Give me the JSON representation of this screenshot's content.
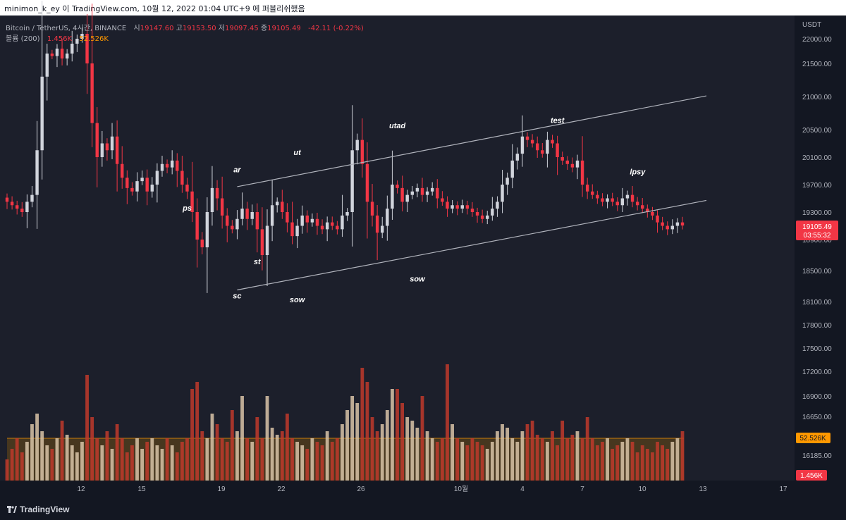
{
  "header": {
    "attribution": "minimon_k_ey 이 TradingView.com, 10월 12, 2022 01:04 UTC+9 에 퍼블리쉬했음"
  },
  "legend": {
    "symbol": "Bitcoin / TetherUS, 4시간, BINANCE",
    "open_label": "시",
    "open": "19147.60",
    "high_label": "고",
    "high": "19153.50",
    "low_label": "저",
    "low": "19097.45",
    "close_label": "종",
    "close": "19105.49",
    "change": "-42.11 (-0.22%)",
    "volume_label": "볼륨 (200)",
    "volume_value": "1.456K",
    "volume_ma": "52.526K"
  },
  "axis": {
    "currency": "USDT"
  },
  "price_tag": {
    "value": "19105.49",
    "countdown": "03:55:32"
  },
  "volume_tags": {
    "ma": "52.526K",
    "current": "1.456K"
  },
  "footer": {
    "brand": "TradingView"
  },
  "colors": {
    "background": "#1c1f2b",
    "up": "#d1d4dc",
    "down": "#f23645",
    "volume_ma": "#ff9800",
    "channel": "#b2b5be"
  },
  "chart_data": {
    "type": "candlestick",
    "title": "Bitcoin / TetherUS, 4시간, BINANCE",
    "xlabel": "",
    "ylabel": "USDT",
    "ylim": [
      15750,
      22150
    ],
    "grid": false,
    "y_ticks": [
      "22000.00",
      "21500.00",
      "21000.00",
      "20500.00",
      "20100.00",
      "19700.00",
      "19300.00",
      "18900.00",
      "18500.00",
      "18100.00",
      "17800.00",
      "17500.00",
      "17200.00",
      "16900.00",
      "16650.00",
      "16185.00"
    ],
    "x_ticks": [
      "12",
      "15",
      "19",
      "22",
      "26",
      "10월",
      "4",
      "7",
      "10",
      "13",
      "17"
    ],
    "annotations": [
      {
        "label": "ps",
        "x": "2022-09-17",
        "y": 19320
      },
      {
        "label": "ar",
        "x": "2022-09-19",
        "y": 19880
      },
      {
        "label": "ut",
        "x": "2022-09-22",
        "y": 20130
      },
      {
        "label": "sc",
        "x": "2022-09-19",
        "y": 18140
      },
      {
        "label": "st",
        "x": "2022-09-20",
        "y": 18580
      },
      {
        "label": "sow",
        "x": "2022-09-22",
        "y": 18090
      },
      {
        "label": "utad",
        "x": "2022-09-27",
        "y": 20520
      },
      {
        "label": "sow",
        "x": "2022-09-28",
        "y": 18360
      },
      {
        "label": "test",
        "x": "2022-10-05",
        "y": 20600
      },
      {
        "label": "lpsy",
        "x": "2022-10-09",
        "y": 19850
      }
    ],
    "channel": {
      "upper": [
        [
          "2022-09-19",
          19670
        ],
        [
          "2022-10-13",
          21010
        ]
      ],
      "lower": [
        [
          "2022-09-19",
          18250
        ],
        [
          "2022-10-13",
          19470
        ]
      ]
    },
    "candles_close": [
      19450,
      19400,
      19350,
      19300,
      19450,
      19550,
      20200,
      21300,
      21700,
      21650,
      21800,
      21600,
      21700,
      21900,
      22000,
      22100,
      21500,
      20600,
      20100,
      20300,
      20200,
      20400,
      20000,
      19800,
      19650,
      19600,
      19750,
      19800,
      19600,
      19700,
      19900,
      20000,
      19950,
      20050,
      19900,
      19700,
      19600,
      19300,
      18900,
      18800,
      19300,
      19650,
      19500,
      19250,
      19100,
      19050,
      19200,
      19350,
      19200,
      19300,
      19050,
      18700,
      19100,
      19400,
      19450,
      19300,
      19150,
      18950,
      19100,
      19250,
      19150,
      19200,
      19100,
      19050,
      19150,
      19100,
      19050,
      19250,
      19300,
      20200,
      20350,
      20000,
      19450,
      19250,
      19000,
      19100,
      19350,
      19700,
      19650,
      19450,
      19550,
      19600,
      19650,
      19550,
      19600,
      19650,
      19500,
      19450,
      19350,
      19400,
      19350,
      19400,
      19350,
      19300,
      19250,
      19200,
      19250,
      19350,
      19450,
      19700,
      19800,
      20050,
      20150,
      20400,
      20350,
      20300,
      20200,
      20150,
      20350,
      20300,
      20100,
      20050,
      20000,
      19950,
      20050,
      19700,
      19600,
      19550,
      19500,
      19450,
      19500,
      19450,
      19400,
      19500,
      19550,
      19450,
      19400,
      19350,
      19300,
      19250,
      19150,
      19100,
      19050,
      19100,
      19150,
      19105
    ],
    "volume_ma_value": "52.526K",
    "last_volume": "1.456K"
  }
}
